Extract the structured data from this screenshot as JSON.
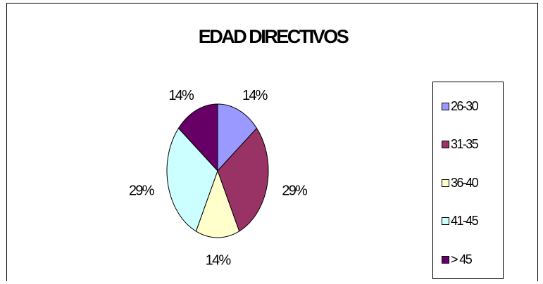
{
  "chart_data": {
    "type": "pie",
    "title": "EDAD DIRECTIVOS",
    "categories": [
      "26-30",
      "31-35",
      "36-40",
      "41-45",
      "> 45"
    ],
    "values": [
      14,
      29,
      14,
      29,
      14
    ],
    "data_labels": [
      "14%",
      "29%",
      "14%",
      "29%",
      "14%"
    ],
    "colors": [
      "#9999ff",
      "#993366",
      "#ffffcc",
      "#ccffff",
      "#660066"
    ],
    "legend": "right"
  }
}
